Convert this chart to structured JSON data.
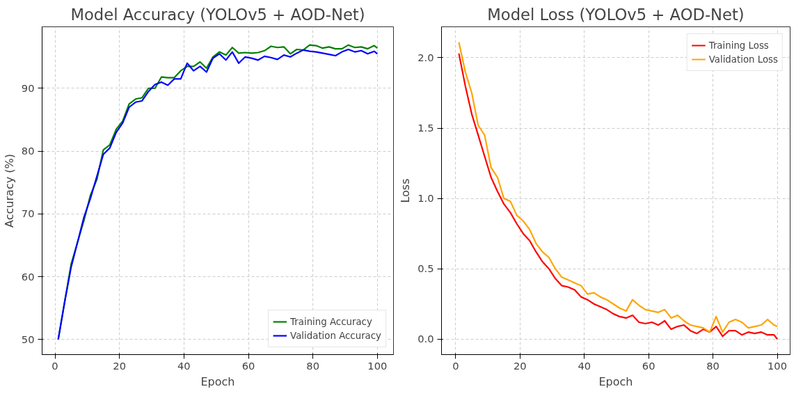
{
  "chart_data": [
    {
      "type": "line",
      "title": "Model Accuracy (YOLOv5 + AOD-Net)",
      "xlabel": "Epoch",
      "ylabel": "Accuracy (%)",
      "xlim": [
        -4,
        105
      ],
      "ylim": [
        47.6,
        99.8
      ],
      "xticks": [
        0,
        20,
        40,
        60,
        80,
        100
      ],
      "yticks": [
        50,
        60,
        70,
        80,
        90
      ],
      "grid": true,
      "legend": "bottom right",
      "line_style": "solid",
      "marker": "none",
      "x": [
        1,
        3,
        5,
        7,
        9,
        11,
        13,
        15,
        17,
        19,
        21,
        23,
        25,
        27,
        29,
        31,
        33,
        35,
        37,
        39,
        41,
        43,
        45,
        47,
        49,
        51,
        53,
        55,
        57,
        59,
        61,
        63,
        65,
        67,
        69,
        71,
        73,
        75,
        77,
        79,
        81,
        83,
        85,
        87,
        89,
        91,
        93,
        95,
        97,
        99,
        100
      ],
      "series": [
        {
          "name": "Training Accuracy",
          "color": "#008000",
          "values": [
            50,
            56,
            62,
            65.5,
            69,
            73,
            75.5,
            80.2,
            81,
            83.5,
            84.8,
            87.5,
            88.3,
            88.5,
            90,
            90,
            91.8,
            91.7,
            91.7,
            92.8,
            93.5,
            93.5,
            94.2,
            93.2,
            95,
            95.8,
            95.3,
            96.5,
            95.6,
            95.7,
            95.6,
            95.7,
            96,
            96.7,
            96.5,
            96.6,
            95.5,
            96.2,
            96.1,
            96.9,
            96.8,
            96.4,
            96.6,
            96.3,
            96.3,
            96.9,
            96.5,
            96.6,
            96.3,
            96.8,
            96.4
          ]
        },
        {
          "name": "Validation Accuracy",
          "color": "#0000ff",
          "values": [
            50,
            56,
            61.5,
            65.5,
            69.5,
            72.5,
            76,
            79.5,
            80.5,
            83,
            84.5,
            87,
            87.8,
            88,
            89.5,
            90.6,
            91,
            90.5,
            91.5,
            91.5,
            94,
            92.8,
            93.5,
            92.6,
            94.8,
            95.5,
            94.5,
            95.8,
            94,
            95,
            94.8,
            94.5,
            95.1,
            94.9,
            94.6,
            95.3,
            95,
            95.6,
            96.1,
            95.9,
            95.8,
            95.6,
            95.4,
            95.2,
            95.8,
            96.2,
            95.8,
            96,
            95.5,
            95.9,
            95.5
          ]
        }
      ]
    },
    {
      "type": "line",
      "title": "Model Loss (YOLOv5 + AOD-Net)",
      "xlabel": "Epoch",
      "ylabel": "Loss",
      "xlim": [
        -4.4,
        104
      ],
      "ylim": [
        -0.11,
        2.22
      ],
      "xticks": [
        0,
        20,
        40,
        60,
        80,
        100
      ],
      "yticks": [
        {
          "value": 0,
          "label": "0.0"
        },
        {
          "value": 0.5,
          "label": "0.5"
        },
        {
          "value": 1,
          "label": "1.0"
        },
        {
          "value": 1.5,
          "label": "1.5"
        },
        {
          "value": 2,
          "label": "2.0"
        }
      ],
      "grid": true,
      "legend": "top right",
      "line_style": "solid",
      "marker": "none",
      "x": [
        1,
        3,
        5,
        7,
        9,
        11,
        13,
        15,
        17,
        19,
        21,
        23,
        25,
        27,
        29,
        31,
        33,
        35,
        37,
        39,
        41,
        43,
        45,
        47,
        49,
        51,
        53,
        55,
        57,
        59,
        61,
        63,
        65,
        67,
        69,
        71,
        73,
        75,
        77,
        79,
        81,
        83,
        85,
        87,
        89,
        91,
        93,
        95,
        97,
        99,
        100
      ],
      "series": [
        {
          "name": "Training Loss",
          "color": "#ff0000",
          "values": [
            2.03,
            1.8,
            1.6,
            1.45,
            1.3,
            1.15,
            1.05,
            0.96,
            0.9,
            0.82,
            0.75,
            0.7,
            0.62,
            0.55,
            0.5,
            0.43,
            0.38,
            0.37,
            0.35,
            0.3,
            0.28,
            0.25,
            0.23,
            0.21,
            0.18,
            0.16,
            0.15,
            0.17,
            0.12,
            0.11,
            0.12,
            0.1,
            0.13,
            0.07,
            0.09,
            0.1,
            0.06,
            0.04,
            0.07,
            0.05,
            0.09,
            0.02,
            0.06,
            0.06,
            0.03,
            0.05,
            0.04,
            0.05,
            0.03,
            0.03,
            0.0
          ]
        },
        {
          "name": "Validation Loss",
          "color": "#ffa500",
          "values": [
            2.11,
            1.9,
            1.75,
            1.52,
            1.45,
            1.22,
            1.15,
            1.0,
            0.98,
            0.88,
            0.84,
            0.78,
            0.68,
            0.62,
            0.58,
            0.5,
            0.44,
            0.42,
            0.4,
            0.38,
            0.32,
            0.33,
            0.3,
            0.28,
            0.25,
            0.22,
            0.2,
            0.28,
            0.24,
            0.21,
            0.2,
            0.19,
            0.21,
            0.15,
            0.17,
            0.13,
            0.1,
            0.09,
            0.08,
            0.05,
            0.16,
            0.05,
            0.12,
            0.14,
            0.12,
            0.08,
            0.09,
            0.1,
            0.14,
            0.1,
            0.09
          ]
        }
      ]
    }
  ]
}
